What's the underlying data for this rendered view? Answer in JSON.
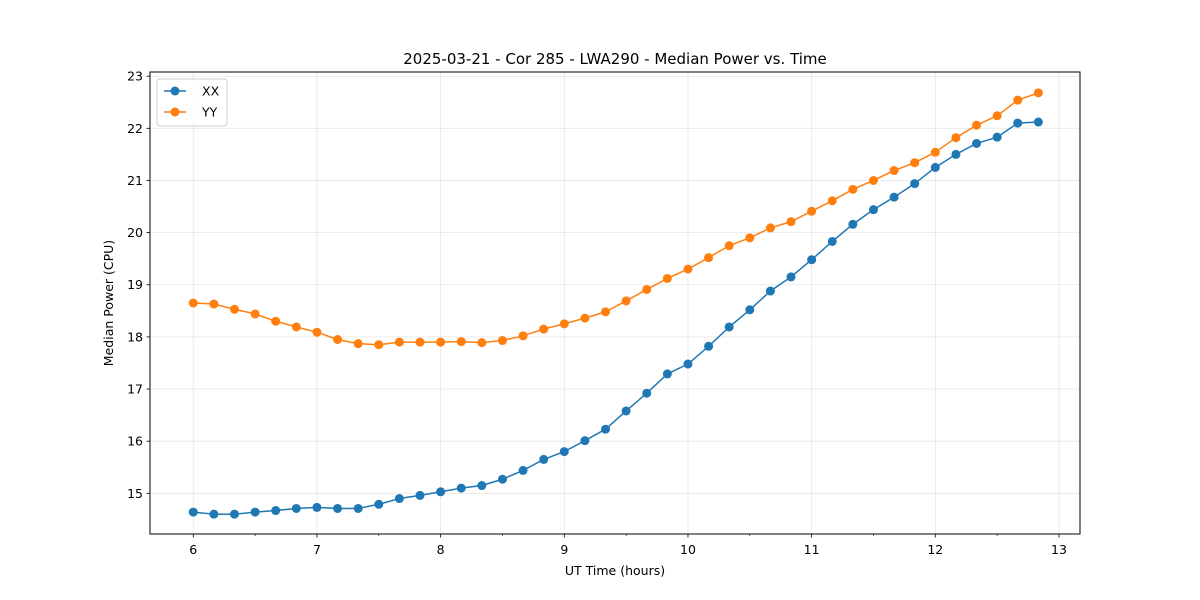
{
  "chart_data": {
    "type": "line",
    "title": "2025-03-21 - Cor 285 - LWA290 - Median Power vs. Time",
    "xlabel": "UT Time (hours)",
    "ylabel": "Median Power (CPU)",
    "xlim": [
      5.65,
      13.17
    ],
    "ylim": [
      14.22,
      23.08
    ],
    "xticks": [
      6,
      7,
      8,
      9,
      10,
      11,
      12,
      13
    ],
    "yticks": [
      15,
      16,
      17,
      18,
      19,
      20,
      21,
      22,
      23
    ],
    "x_minor_step": 0.5,
    "grid": true,
    "legend_position": "top-left",
    "x": [
      6.0,
      6.1667,
      6.3333,
      6.5,
      6.6667,
      6.8333,
      7.0,
      7.1667,
      7.3333,
      7.5,
      7.6667,
      7.8333,
      8.0,
      8.1667,
      8.3333,
      8.5,
      8.6667,
      8.8333,
      9.0,
      9.1667,
      9.3333,
      9.5,
      9.6667,
      9.8333,
      10.0,
      10.1667,
      10.3333,
      10.5,
      10.6667,
      10.8333,
      11.0,
      11.1667,
      11.3333,
      11.5,
      11.6667,
      11.8333,
      12.0,
      12.1667,
      12.3333,
      12.5,
      12.6667,
      12.8333
    ],
    "series": [
      {
        "name": "XX",
        "color": "#1f77b4",
        "values": [
          14.64,
          14.6,
          14.6,
          14.64,
          14.67,
          14.71,
          14.73,
          14.71,
          14.71,
          14.79,
          14.9,
          14.96,
          15.03,
          15.1,
          15.15,
          15.27,
          15.44,
          15.65,
          15.8,
          16.01,
          16.23,
          16.58,
          16.92,
          17.29,
          17.48,
          17.82,
          18.19,
          18.52,
          18.88,
          19.15,
          19.48,
          19.83,
          20.16,
          20.44,
          20.68,
          20.94,
          21.25,
          21.5,
          21.71,
          21.83,
          22.1,
          22.12
        ]
      },
      {
        "name": "YY",
        "color": "#ff7f0e",
        "values": [
          18.65,
          18.63,
          18.53,
          18.44,
          18.3,
          18.19,
          18.09,
          17.95,
          17.87,
          17.85,
          17.9,
          17.9,
          17.9,
          17.91,
          17.89,
          17.93,
          18.02,
          18.15,
          18.25,
          18.36,
          18.48,
          18.69,
          18.91,
          19.12,
          19.3,
          19.52,
          19.75,
          19.9,
          20.09,
          20.21,
          20.41,
          20.61,
          20.83,
          21.0,
          21.19,
          21.34,
          21.54,
          21.82,
          22.06,
          22.24,
          22.54,
          22.68
        ]
      }
    ]
  }
}
